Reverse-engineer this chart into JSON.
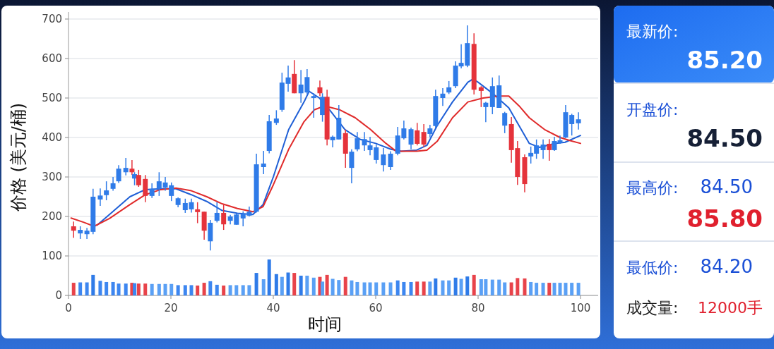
{
  "chart_data": [
    {
      "type": "candlestick",
      "xlabel": "时间",
      "ylabel": "价格 (美元/桶)",
      "x": [
        1.0,
        2.3,
        3.6,
        4.8,
        6.2,
        7.4,
        8.7,
        9.8,
        11.2,
        12.4,
        12.9,
        13.7,
        15.0,
        16.3,
        17.7,
        18.9,
        20.1,
        21.4,
        22.8,
        24.0,
        25.2,
        26.5,
        27.7,
        29.0,
        30.3,
        31.6,
        32.8,
        34.1,
        35.3,
        36.7,
        38.1,
        39.2,
        40.6,
        41.7,
        42.9,
        44.1,
        45.4,
        46.6,
        47.9,
        49.1,
        49.6,
        50.5,
        51.6,
        52.8,
        54.1,
        55.3,
        56.4,
        57.8,
        58.9,
        60.1,
        61.5,
        62.9,
        64.3,
        65.5,
        66.9,
        68.1,
        69.4,
        70.6,
        71.7,
        73.1,
        74.3,
        75.6,
        76.7,
        77.9,
        79.2,
        80.6,
        81.5,
        82.8,
        84.1,
        85.2,
        86.5,
        87.7,
        89.1,
        90.3,
        91.4,
        92.7,
        93.9,
        94.9,
        96.0,
        97.1,
        98.3,
        99.6
      ],
      "ohlc": [
        [
          175,
          187,
          146,
          164
        ],
        [
          157,
          175,
          143,
          166
        ],
        [
          155,
          171,
          143,
          164
        ],
        [
          161,
          270,
          155,
          250
        ],
        [
          243,
          271,
          227,
          253
        ],
        [
          254,
          289,
          241,
          266
        ],
        [
          270,
          300,
          265,
          284
        ],
        [
          289,
          330,
          285,
          321
        ],
        [
          312,
          348,
          304,
          323
        ],
        [
          321,
          343,
          305,
          312
        ],
        [
          296,
          312,
          279,
          307
        ],
        [
          305,
          318,
          275,
          279
        ],
        [
          295,
          305,
          236,
          252
        ],
        [
          252,
          284,
          247,
          270
        ],
        [
          270,
          312,
          252,
          289
        ],
        [
          273,
          300,
          265,
          286
        ],
        [
          252,
          286,
          239,
          279
        ],
        [
          229,
          248,
          223,
          246
        ],
        [
          216,
          245,
          209,
          234
        ],
        [
          218,
          245,
          210,
          236
        ],
        [
          218,
          236,
          183,
          211
        ],
        [
          212,
          212,
          141,
          164
        ],
        [
          137,
          191,
          114,
          184
        ],
        [
          189,
          236,
          185,
          209
        ],
        [
          209,
          230,
          166,
          180
        ],
        [
          189,
          204,
          180,
          200
        ],
        [
          179,
          207,
          179,
          205
        ],
        [
          195,
          213,
          175,
          207
        ],
        [
          202,
          225,
          200,
          212
        ],
        [
          212,
          359,
          210,
          332
        ],
        [
          325,
          366,
          307,
          334
        ],
        [
          366,
          457,
          360,
          441
        ],
        [
          437,
          469,
          432,
          448
        ],
        [
          470,
          564,
          465,
          539
        ],
        [
          536,
          582,
          516,
          552
        ],
        [
          561,
          596,
          512,
          512
        ],
        [
          512,
          571,
          488,
          534
        ],
        [
          514,
          573,
          510,
          553
        ],
        [
          500,
          512,
          450,
          505
        ],
        [
          527,
          544,
          505,
          512
        ],
        [
          457,
          512,
          440,
          503
        ],
        [
          503,
          521,
          380,
          395
        ],
        [
          393,
          405,
          375,
          402
        ],
        [
          395,
          482,
          395,
          450
        ],
        [
          411,
          420,
          323,
          359
        ],
        [
          323,
          370,
          284,
          364
        ],
        [
          370,
          414,
          365,
          398
        ],
        [
          380,
          414,
          366,
          396
        ],
        [
          368,
          402,
          355,
          380
        ],
        [
          343,
          382,
          334,
          375
        ],
        [
          330,
          373,
          314,
          357
        ],
        [
          325,
          365,
          318,
          359
        ],
        [
          359,
          427,
          355,
          405
        ],
        [
          398,
          443,
          395,
          423
        ],
        [
          382,
          425,
          370,
          421
        ],
        [
          418,
          437,
          380,
          384
        ],
        [
          414,
          434,
          375,
          382
        ],
        [
          409,
          432,
          400,
          423
        ],
        [
          429,
          521,
          425,
          505
        ],
        [
          500,
          525,
          480,
          511
        ],
        [
          514,
          543,
          510,
          527
        ],
        [
          530,
          593,
          525,
          582
        ],
        [
          580,
          636,
          575,
          589
        ],
        [
          582,
          684,
          578,
          639
        ],
        [
          637,
          664,
          509,
          521
        ],
        [
          527,
          530,
          477,
          518
        ],
        [
          477,
          490,
          439,
          488
        ],
        [
          477,
          552,
          459,
          530
        ],
        [
          475,
          557,
          475,
          532
        ],
        [
          430,
          465,
          411,
          462
        ],
        [
          434,
          452,
          336,
          368
        ],
        [
          373,
          391,
          280,
          300
        ],
        [
          350,
          357,
          261,
          282
        ],
        [
          352,
          377,
          334,
          361
        ],
        [
          359,
          395,
          346,
          380
        ],
        [
          368,
          395,
          346,
          382
        ],
        [
          384,
          396,
          341,
          368
        ],
        [
          368,
          402,
          366,
          391
        ],
        [
          386,
          405,
          384,
          393
        ],
        [
          400,
          482,
          398,
          464
        ],
        [
          434,
          460,
          405,
          457
        ],
        [
          436,
          464,
          420,
          446
        ]
      ],
      "series": [
        {
          "type": "bar",
          "values": [
            32,
            33,
            33,
            52,
            37,
            34,
            34,
            30,
            30,
            32,
            31,
            30,
            30,
            29,
            29,
            29,
            29,
            26,
            26,
            26,
            25,
            32,
            36,
            27,
            25,
            26,
            26,
            26,
            26,
            57,
            41,
            91,
            54,
            47,
            58,
            57,
            50,
            50,
            45,
            47,
            35,
            52,
            42,
            39,
            47,
            38,
            34,
            33,
            33,
            33,
            33,
            33,
            38,
            34,
            34,
            35,
            35,
            35,
            43,
            38,
            38,
            45,
            42,
            48,
            52,
            41,
            41,
            40,
            40,
            33,
            33,
            44,
            43,
            34,
            32,
            32,
            32,
            32,
            32,
            32,
            32,
            32
          ],
          "colors": [
            "#e8434a",
            "#3d86f0",
            "#3d86f0",
            "#2f7be8",
            "#3d86f0",
            "#3d86f0",
            "#3d86f0",
            "#3d86f0",
            "#3d86f0",
            "#e8434a",
            "#3d86f0",
            "#e8434a",
            "#e8434a",
            "#5aa0f5",
            "#5aa0f5",
            "#5aa0f5",
            "#5aa0f5",
            "#3d86f0",
            "#3d86f0",
            "#3d86f0",
            "#e8434a",
            "#e8434a",
            "#3d86f0",
            "#3d86f0",
            "#e8434a",
            "#5aa0f5",
            "#5aa0f5",
            "#5aa0f5",
            "#5aa0f5",
            "#2f7be8",
            "#5aa0f5",
            "#2f7be8",
            "#2f7be8",
            "#5aa0f5",
            "#2f7be8",
            "#e8434a",
            "#2f7be8",
            "#5aa0f5",
            "#5aa0f5",
            "#e8434a",
            "#5aa0f5",
            "#e8434a",
            "#5aa0f5",
            "#5aa0f5",
            "#e8434a",
            "#5aa0f5",
            "#5aa0f5",
            "#5aa0f5",
            "#5aa0f5",
            "#5aa0f5",
            "#5aa0f5",
            "#5aa0f5",
            "#3d86f0",
            "#3d86f0",
            "#3d86f0",
            "#e8434a",
            "#e8434a",
            "#5aa0f5",
            "#2f7be8",
            "#5aa0f5",
            "#5aa0f5",
            "#2f7be8",
            "#5aa0f5",
            "#2f7be8",
            "#e8434a",
            "#5aa0f5",
            "#5aa0f5",
            "#5aa0f5",
            "#5aa0f5",
            "#5aa0f5",
            "#e8434a",
            "#e8434a",
            "#e8434a",
            "#5aa0f5",
            "#5aa0f5",
            "#5aa0f5",
            "#e8434a",
            "#5aa0f5",
            "#5aa0f5",
            "#5aa0f5",
            "#5aa0f5",
            "#5aa0f5"
          ]
        },
        {
          "type": "line",
          "color": "#1f5fd6",
          "x": [
            5.6,
            8,
            12,
            15,
            18,
            21,
            24,
            27,
            30,
            33,
            36,
            38,
            40,
            43,
            46,
            47,
            49,
            51,
            54,
            57,
            60,
            63,
            65,
            68,
            70,
            72,
            75,
            78,
            79,
            80,
            83,
            86,
            88,
            90,
            92,
            95,
            97,
            100
          ],
          "values": [
            178,
            205,
            250,
            268,
            270,
            270,
            255,
            238,
            215,
            208,
            205,
            230,
            300,
            420,
            490,
            517,
            500,
            470,
            420,
            395,
            385,
            370,
            365,
            368,
            380,
            430,
            490,
            540,
            548,
            540,
            510,
            475,
            430,
            385,
            375,
            385,
            388,
            405
          ]
        },
        {
          "type": "line",
          "color": "#e02b2b",
          "x": [
            0.5,
            3,
            5,
            8,
            12,
            15,
            18,
            21,
            24,
            27,
            30,
            33,
            36,
            38,
            40,
            43,
            46,
            48,
            50,
            53,
            56,
            59,
            62,
            64,
            68,
            70,
            72,
            75,
            78,
            81,
            84,
            86,
            88,
            90,
            93,
            96,
            98,
            100
          ],
          "values": [
            196,
            185,
            175,
            195,
            230,
            255,
            268,
            272,
            265,
            250,
            232,
            220,
            212,
            225,
            280,
            370,
            440,
            470,
            480,
            470,
            450,
            420,
            385,
            365,
            365,
            368,
            390,
            450,
            490,
            500,
            505,
            505,
            480,
            450,
            420,
            400,
            392,
            385
          ]
        }
      ],
      "xlim": [
        0,
        100
      ],
      "xticks": [
        0,
        20,
        40,
        60,
        80,
        100
      ],
      "ylim": [
        0,
        700
      ],
      "yticks": [
        0,
        100,
        200,
        300,
        400,
        500,
        600,
        700
      ],
      "grid": "y"
    },
    {
      "type": "other",
      "annotations": [
        "最新价:",
        "85.20",
        "开盘价:",
        "84.50",
        "最高价:",
        "84.50",
        "85.80",
        "最低价:",
        "84.20",
        "成交量:",
        "12000手"
      ]
    }
  ]
}
